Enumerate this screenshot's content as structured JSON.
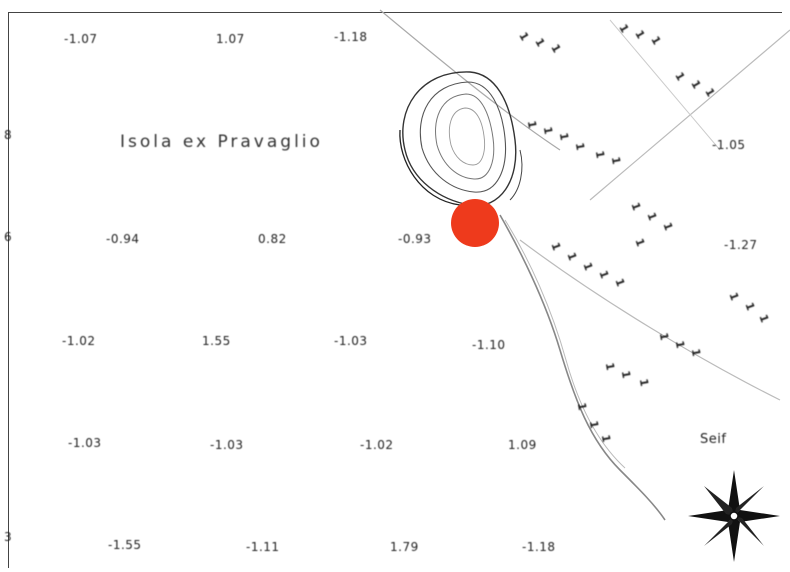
{
  "map": {
    "place_label": "Isola ex Pravaglio",
    "corner_label": "Seif",
    "edge_marks": [
      "8",
      "6",
      "3"
    ],
    "marker_color": "#ee3a1c",
    "soundings": [
      "-1.07",
      "1.07",
      "-1.18",
      "-1.05",
      "-0.94",
      "0.82",
      "-0.93",
      "-1.27",
      "-1.02",
      "1.55",
      "-1.03",
      "-1.10",
      "-1.03",
      "-1.03",
      "-1.02",
      "1.09",
      "-1.55",
      "-1.11",
      "1.79",
      "-1.18"
    ],
    "depth_ticks": [
      "1",
      "1",
      "1",
      "1",
      "1",
      "1",
      "1",
      "1",
      "1",
      "1",
      "1",
      "1",
      "1",
      "1",
      "1",
      "1",
      "1",
      "1",
      "1",
      "1",
      "1",
      "1",
      "1",
      "1",
      "1",
      "1",
      "1",
      "1",
      "1",
      "1",
      "1",
      "1",
      "1",
      "1",
      "1",
      "1"
    ],
    "icons": {
      "marker": "location-dot-icon",
      "compass": "compass-rose-icon"
    }
  }
}
